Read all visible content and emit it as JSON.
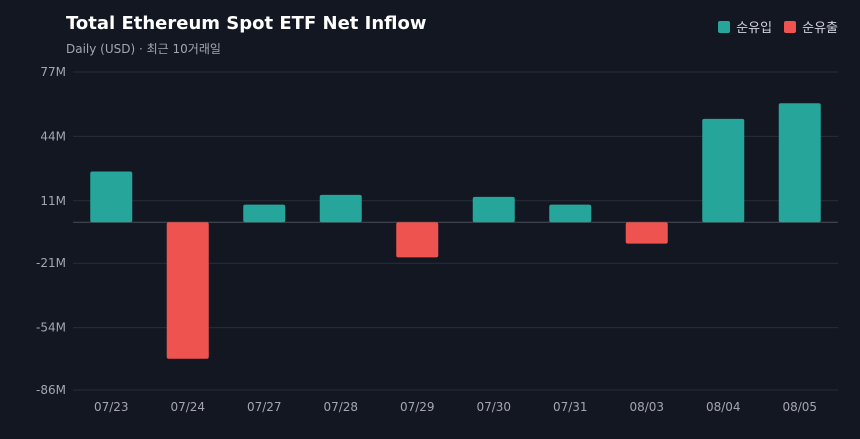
{
  "chart_data": {
    "type": "bar",
    "title": "Total Ethereum Spot ETF Net Inflow",
    "subtitle": "Daily (USD) · 최근 10거래일",
    "categories": [
      "07/23",
      "07/24",
      "07/27",
      "07/28",
      "07/29",
      "07/30",
      "07/31",
      "08/03",
      "08/04",
      "08/05"
    ],
    "series": [
      {
        "name": "순유입",
        "values": [
          26,
          -70,
          9,
          14,
          -18,
          13,
          9,
          -11,
          53,
          61
        ]
      }
    ],
    "legend": [
      {
        "label": "순유입",
        "color": "#26a69a"
      },
      {
        "label": "순유출",
        "color": "#ef5350"
      }
    ],
    "y_ticks": [
      77,
      44,
      11,
      -21,
      -54,
      -86
    ],
    "y_tick_labels": [
      "77M",
      "44M",
      "11M",
      "-21M",
      "-54M",
      "-86M"
    ],
    "ylim": [
      -86,
      77
    ],
    "xlabel": "",
    "ylabel": "",
    "unit": "M",
    "grid": true,
    "legend_position": "top-right",
    "colors": {
      "positive": "#26a69a",
      "negative": "#ef5350",
      "grid": "#2a2e39",
      "zero_line": "#4a4e59",
      "background": "#131722"
    }
  }
}
